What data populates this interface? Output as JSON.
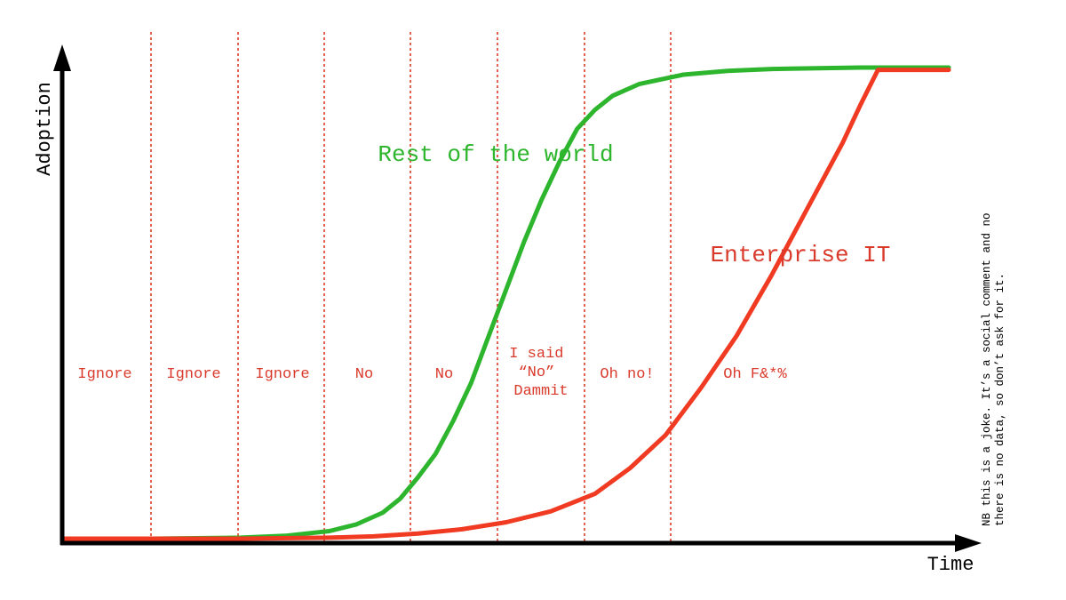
{
  "chart_data": {
    "type": "line",
    "xlabel": "Time",
    "ylabel": "Adoption",
    "phases": [
      "Ignore",
      "Ignore",
      "Ignore",
      "No",
      "No",
      "I said “No” Dammit",
      "Oh no!",
      "Oh F&*%"
    ],
    "phase_lines": [
      "I said",
      "“No”",
      "Dammit"
    ],
    "series": [
      {
        "name": "Rest of the world",
        "color": "#2db52d",
        "x": [
          0,
          1,
          2,
          2.5,
          3,
          3.3,
          3.6,
          3.8,
          4,
          4.2,
          4.4,
          4.6,
          4.8,
          5,
          5.2,
          5.4,
          5.6,
          5.8,
          6,
          6.2,
          6.5,
          7,
          7.5,
          8,
          9,
          10
        ],
        "values": [
          0,
          0,
          0.002,
          0.006,
          0.016,
          0.03,
          0.055,
          0.085,
          0.13,
          0.18,
          0.25,
          0.33,
          0.43,
          0.53,
          0.63,
          0.72,
          0.8,
          0.87,
          0.91,
          0.94,
          0.965,
          0.985,
          0.993,
          0.997,
          1.0,
          1.0
        ]
      },
      {
        "name": "Enterprise IT",
        "color": "#f03a22",
        "x": [
          0,
          2,
          3,
          3.5,
          4,
          4.5,
          5,
          5.5,
          6,
          6.4,
          6.8,
          7.2,
          7.6,
          8,
          8.4,
          8.8,
          9,
          9.2,
          10
        ],
        "values": [
          0,
          0,
          0.002,
          0.005,
          0.011,
          0.02,
          0.035,
          0.058,
          0.095,
          0.15,
          0.22,
          0.32,
          0.43,
          0.56,
          0.7,
          0.84,
          0.92,
          0.995,
          0.995
        ]
      }
    ],
    "note": [
      "NB this is a joke. It’s a social comment and no",
      "there is no data, so don’t ask for it."
    ]
  }
}
